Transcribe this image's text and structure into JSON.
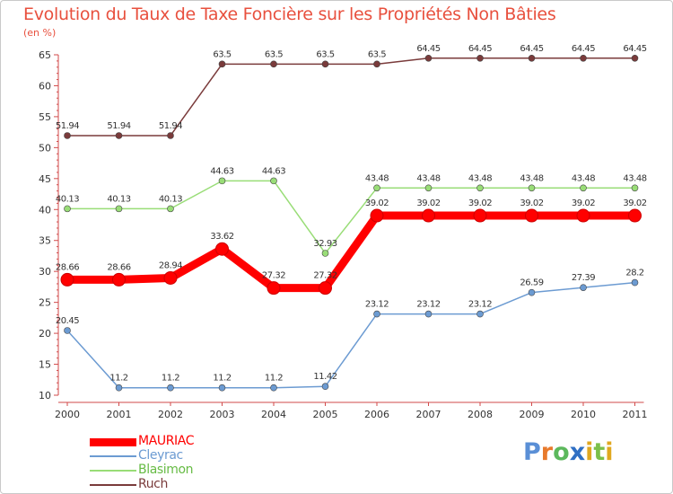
{
  "title": "Evolution du Taux de Taxe Foncière sur les Propriétés Non Bâties",
  "subtitle": "(en %)",
  "logo": {
    "p": "P",
    "r": "r",
    "o": "o",
    "x": "x",
    "i": "i",
    "t": "t",
    "i2": "i"
  },
  "chart_data": {
    "type": "line",
    "title": "Evolution du Taux de Taxe Foncière sur les Propriétés Non Bâties",
    "ylabel": "(en %)",
    "xlabel": "",
    "ylim": [
      10,
      65
    ],
    "yticks": [
      10,
      15,
      20,
      25,
      30,
      35,
      40,
      45,
      50,
      55,
      60,
      65
    ],
    "categories": [
      "2000",
      "2001",
      "2002",
      "2003",
      "2004",
      "2005",
      "2006",
      "2007",
      "2008",
      "2009",
      "2010",
      "2011"
    ],
    "series": [
      {
        "name": "MAURIAC",
        "color": "#ff0000",
        "values": [
          28.66,
          28.66,
          28.94,
          33.62,
          27.32,
          27.32,
          39.02,
          39.02,
          39.02,
          39.02,
          39.02,
          39.02
        ],
        "labels": [
          "28.66",
          "28.66",
          "28.94",
          "33.62",
          "27.32",
          "27.32",
          "39.02",
          "39.02",
          "39.02",
          "39.02",
          "39.02",
          "39.02"
        ]
      },
      {
        "name": "Cleyrac",
        "color": "#6c9bd2",
        "values": [
          20.45,
          11.2,
          11.2,
          11.2,
          11.2,
          11.42,
          23.12,
          23.12,
          23.12,
          26.59,
          27.39,
          28.2
        ],
        "labels": [
          "20.45",
          "11.2",
          "11.2",
          "11.2",
          "11.2",
          "11.42",
          "23.12",
          "23.12",
          "23.12",
          "26.59",
          "27.39",
          "28.2"
        ]
      },
      {
        "name": "Blasimon",
        "color": "#99dd77",
        "values": [
          40.13,
          40.13,
          40.13,
          44.63,
          44.63,
          32.93,
          43.48,
          43.48,
          43.48,
          43.48,
          43.48,
          43.48
        ],
        "labels": [
          "40.13",
          "40.13",
          "40.13",
          "44.63",
          "44.63",
          "32.93",
          "43.48",
          "43.48",
          "43.48",
          "43.48",
          "43.48",
          "43.48"
        ]
      },
      {
        "name": "Ruch",
        "color": "#7a3b3b",
        "values": [
          51.94,
          51.94,
          51.94,
          63.5,
          63.5,
          63.5,
          63.5,
          64.45,
          64.45,
          64.45,
          64.45,
          64.45
        ],
        "labels": [
          "51.94",
          "51.94",
          "51.94",
          "63.5",
          "63.5",
          "63.5",
          "63.5",
          "64.45",
          "64.45",
          "64.45",
          "64.45",
          "64.45"
        ]
      }
    ],
    "legend": "bottom-left",
    "grid": false
  }
}
